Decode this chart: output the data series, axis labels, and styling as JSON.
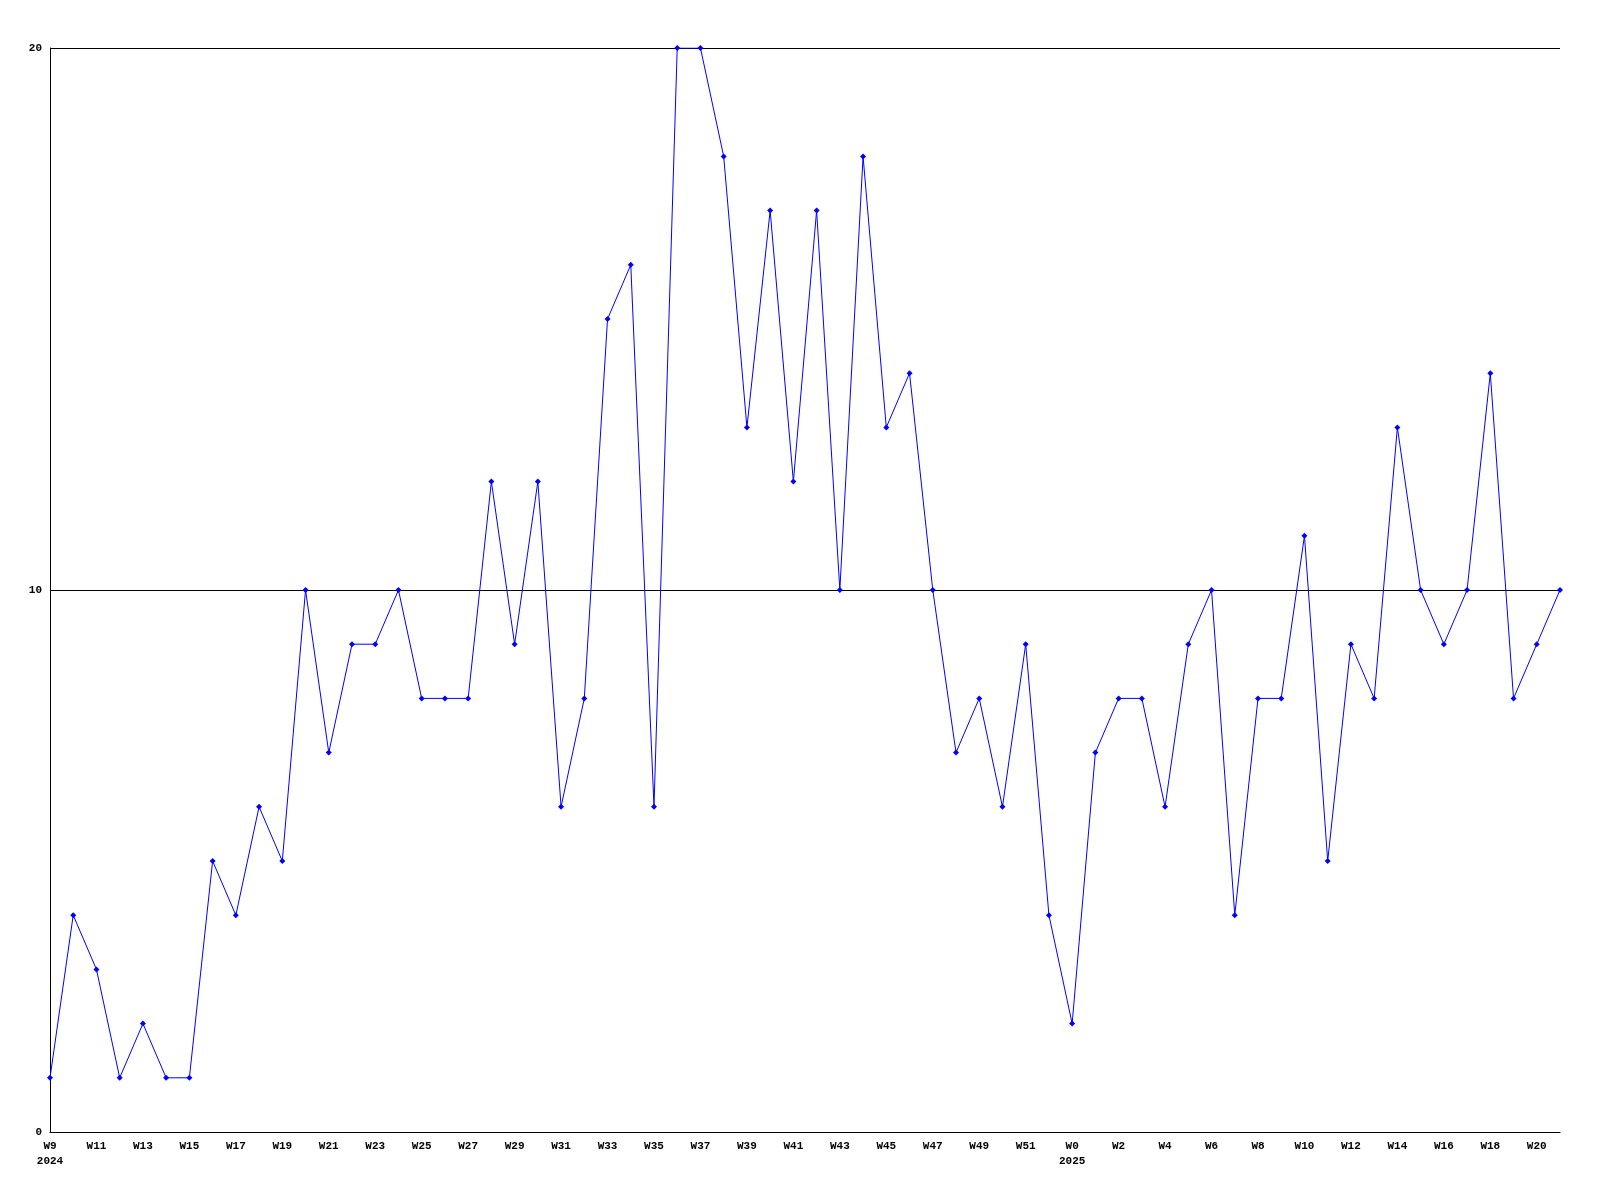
{
  "chart_data": {
    "type": "line",
    "categories": [
      "W9\n2024",
      null,
      "W11",
      null,
      "W13",
      null,
      "W15",
      null,
      "W17",
      null,
      "W19",
      null,
      "W21",
      null,
      "W23",
      null,
      "W25",
      null,
      "W27",
      null,
      "W29",
      null,
      "W31",
      null,
      "W33",
      null,
      "W35",
      null,
      "W37",
      null,
      "W39",
      null,
      "W41",
      null,
      "W43",
      null,
      "W45",
      null,
      "W47",
      null,
      "W49",
      null,
      "W51",
      null,
      "W0\n2025",
      null,
      "W2",
      null,
      "W4",
      null,
      "W6",
      null,
      "W8",
      null,
      "W10",
      null,
      "W12",
      null,
      "W14",
      null,
      "W16",
      null,
      "W18",
      null,
      "W20",
      null
    ],
    "series": [
      {
        "color": "#0000ff",
        "values": [
          1,
          4,
          3,
          1,
          2,
          1,
          1,
          5,
          4,
          6,
          5,
          10,
          7,
          9,
          9,
          10,
          8,
          8,
          8,
          12,
          9,
          12,
          6,
          8,
          15,
          16,
          6,
          20,
          20,
          18,
          13,
          17,
          12,
          17,
          10,
          18,
          13,
          14,
          10,
          7,
          8,
          6,
          9,
          4,
          2,
          7,
          8,
          8,
          6,
          9,
          10,
          4,
          8,
          8,
          11,
          5,
          9,
          8,
          13,
          10,
          9,
          10,
          14,
          8,
          9,
          10
        ]
      }
    ],
    "ylim": [
      0,
      20
    ],
    "yticks": [
      0,
      10,
      20
    ],
    "grid": "y",
    "marker": "diamond",
    "line_style": "solid"
  }
}
